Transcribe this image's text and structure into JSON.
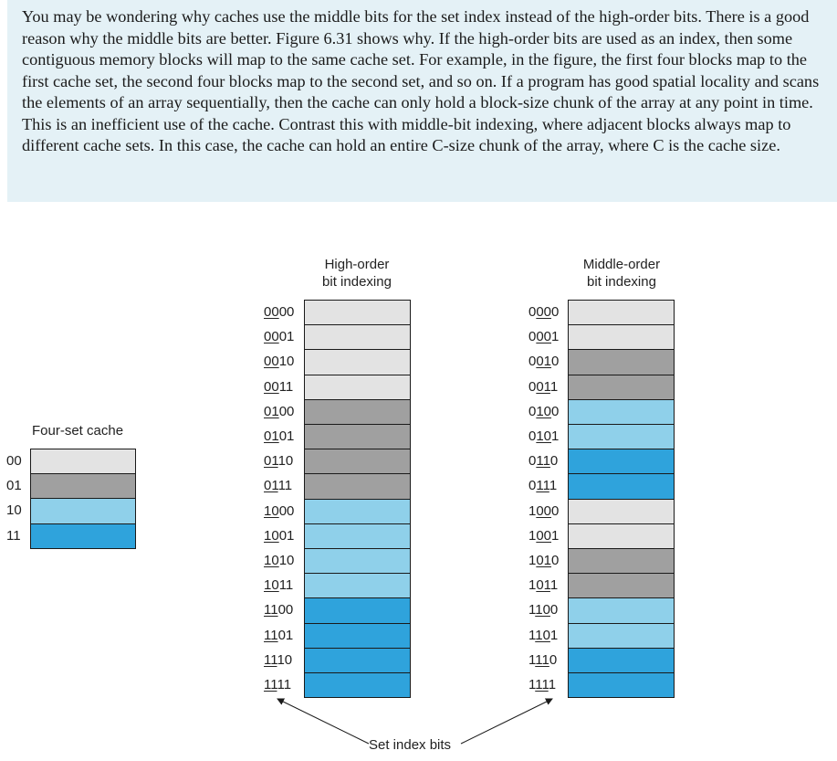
{
  "paragraph": "You may be wondering why caches use the middle bits for the set index instead of the high-order bits. There is a good reason why the middle bits are better. Figure 6.31 shows why. If the high-order bits are used as an index, then some contiguous memory blocks will map to the same cache set. For example, in the figure, the first four blocks map to the first cache set, the second four blocks map to the second set, and so on. If a program has good spatial locality and scans the elements of an array sequentially, then the cache can only hold a block-size chunk of the array at any point in time. This is an inefficient use of the cache. Contrast this with middle-bit indexing, where adjacent blocks always map to different cache sets. In this case, the cache can hold an entire C-size chunk of the array, where C is the cache size.",
  "four_set_cache": {
    "title": "Four-set cache",
    "sets": [
      {
        "label": "00",
        "color": "#e3e3e3"
      },
      {
        "label": "01",
        "color": "#a0a0a0"
      },
      {
        "label": "10",
        "color": "#8fd0ea"
      },
      {
        "label": "11",
        "color": "#2fa3dc"
      }
    ]
  },
  "high_order": {
    "title_line1": "High-order",
    "title_line2": "bit indexing"
  },
  "middle_order": {
    "title_line1": "Middle-order",
    "title_line2": "bit indexing"
  },
  "addresses": [
    "0000",
    "0001",
    "0010",
    "0011",
    "0100",
    "0101",
    "0110",
    "0111",
    "1000",
    "1001",
    "1010",
    "1011",
    "1100",
    "1101",
    "1110",
    "1111"
  ],
  "set_index_label": "Set index bits"
}
